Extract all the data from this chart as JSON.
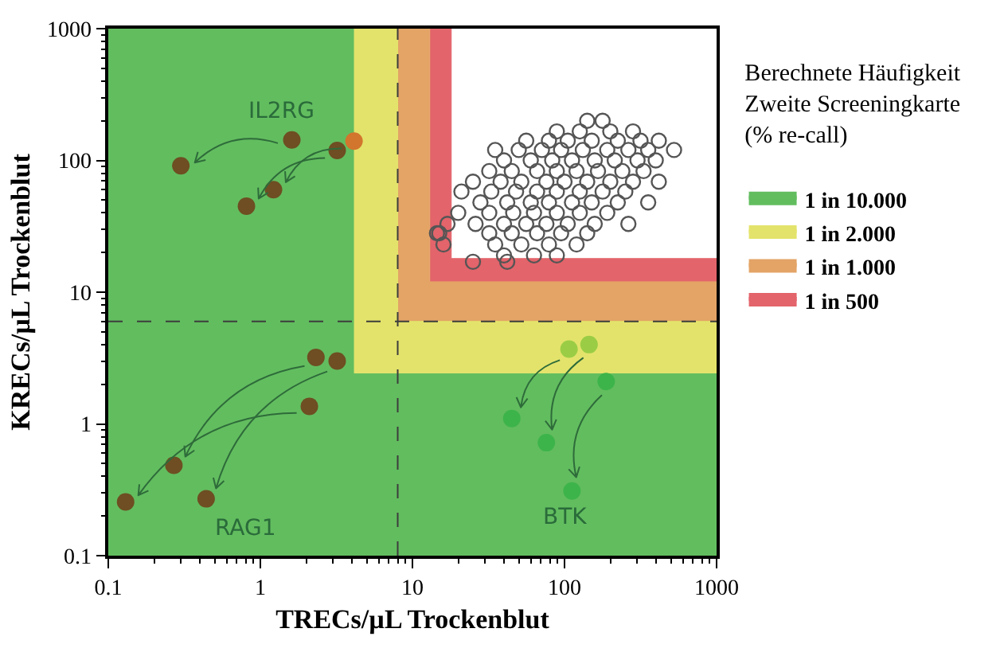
{
  "chart_data": {
    "type": "scatter",
    "xlabel": "TRECs/µL Trockenblut",
    "ylabel": "KRECs/µL Trockenblut",
    "legend_title": "Berechnete Häufigkeit\nZweite Screeningkarte\n(% re-call)",
    "log": "xy",
    "xlim": [
      0.1,
      1000
    ],
    "ylim": [
      0.1,
      1000
    ],
    "xticks": [
      0.1,
      1,
      10,
      100,
      1000
    ],
    "yticks": [
      0.1,
      1,
      10,
      100,
      1000
    ],
    "legend": "right",
    "marker": "circle",
    "ref_lines": [
      {
        "axis": "x",
        "value": 8,
        "color": "#3d3d3d",
        "line_style": "dashed"
      },
      {
        "axis": "y",
        "value": 6,
        "color": "#3d3d3d",
        "line_style": "dashed"
      }
    ],
    "series": [
      {
        "type": "area",
        "marker": "none",
        "name": "1 in 10.000",
        "color": "#62bd5f",
        "x": [
          0.1,
          4.1,
          4.1,
          1000
        ],
        "values": [
          1000,
          1000,
          2.4,
          2.4
        ]
      },
      {
        "type": "area",
        "marker": "none",
        "name": "1 in 2.000",
        "color": "#e3e36b",
        "x": [
          4.1,
          8,
          8,
          1000
        ],
        "values": [
          1000,
          1000,
          6,
          6
        ]
      },
      {
        "type": "area",
        "marker": "none",
        "name": "1 in 1.000",
        "color": "#e3a466",
        "x": [
          8,
          13,
          13,
          1000
        ],
        "values": [
          1000,
          1000,
          12,
          12
        ]
      },
      {
        "type": "area",
        "marker": "none",
        "name": "1 in 500",
        "color": "#e3646b",
        "x": [
          13,
          18,
          18,
          1000
        ],
        "values": [
          1000,
          1000,
          18,
          18
        ]
      },
      {
        "color": "#555555",
        "x": [
          141,
          178,
          89,
          126,
          200,
          282,
          56,
          79,
          105,
          151,
          224,
          316,
          417,
          35,
          50,
          71,
          95,
          132,
          191,
          263,
          355,
          525,
          40,
          60,
          83,
          112,
          158,
          214,
          302,
          398,
          32,
          45,
          66,
          89,
          120,
          166,
          240,
          331,
          25,
          38,
          52,
          76,
          100,
          141,
          200,
          282,
          417,
          21,
          33,
          48,
          66,
          89,
          126,
          178,
          251,
          28,
          42,
          60,
          79,
          112,
          151,
          224,
          355,
          20,
          32,
          46,
          63,
          89,
          126,
          191,
          17,
          26,
          40,
          56,
          76,
          105,
          158,
          263,
          15,
          32,
          45,
          66,
          95,
          141,
          16,
          35,
          52,
          79,
          120,
          40,
          63,
          89,
          25,
          42,
          14.5
        ],
        "values": [
          200,
          200,
          166,
          166,
          166,
          166,
          141,
          141,
          141,
          141,
          141,
          141,
          141,
          120,
          120,
          120,
          120,
          120,
          120,
          120,
          120,
          120,
          100,
          100,
          100,
          100,
          100,
          100,
          100,
          100,
          83,
          83,
          83,
          83,
          83,
          83,
          83,
          83,
          69,
          69,
          69,
          69,
          69,
          69,
          69,
          69,
          69,
          58,
          58,
          58,
          58,
          58,
          58,
          58,
          58,
          48,
          48,
          48,
          48,
          48,
          48,
          48,
          48,
          40,
          40,
          40,
          40,
          40,
          40,
          40,
          33,
          33,
          33,
          33,
          33,
          33,
          33,
          33,
          28,
          28,
          28,
          28,
          28,
          28,
          23,
          23,
          23,
          23,
          23,
          19,
          19,
          19,
          17,
          17,
          28
        ]
      },
      {
        "name": "IL2RG",
        "x": [
          1.61,
          3.2,
          4.13,
          0.3,
          0.81,
          1.22
        ],
        "values": [
          143,
          119,
          140,
          91,
          45,
          60
        ],
        "colors": [
          "#6e4e22",
          "#6e4e22",
          "#d2752d",
          "#6e4e22",
          "#6e4e22",
          "#6e4e22"
        ]
      },
      {
        "name": "RAG1",
        "x": [
          2.32,
          2.1,
          3.2,
          0.27,
          0.13,
          0.44
        ],
        "values": [
          3.2,
          1.36,
          3.0,
          0.485,
          0.256,
          0.27
        ],
        "colors": [
          "#6e4e22",
          "#6e4e22",
          "#6e4e22",
          "#6e4e22",
          "#6e4e22",
          "#6e4e22"
        ]
      },
      {
        "name": "BTK",
        "x": [
          107,
          145,
          188,
          45,
          76,
          112
        ],
        "values": [
          3.7,
          4.0,
          2.1,
          1.1,
          0.72,
          0.31
        ],
        "colors": [
          "#9acd45",
          "#9acd45",
          "#3db44a",
          "#3db44a",
          "#3db44a",
          "#3db44a"
        ]
      }
    ]
  }
}
